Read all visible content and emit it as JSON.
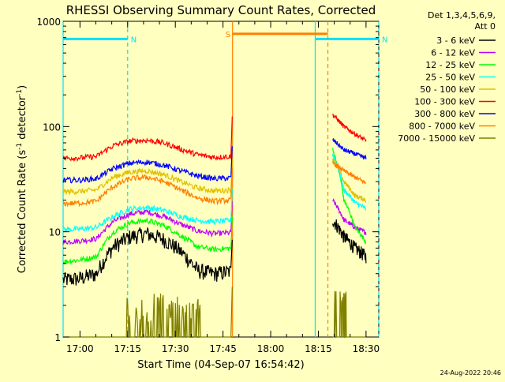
{
  "chart_data": {
    "type": "line",
    "title": "RHESSI Observing Summary Count Rates, Corrected",
    "xlabel": "Start Time (04-Sep-07 16:54:42)",
    "ylabel_main": "Corrected Count Rate (s",
    "ylabel_sup1": "-1",
    "ylabel_mid": " detector",
    "ylabel_sup2": "-1",
    "ylabel_end": ")",
    "yscale": "log",
    "ylim": [
      1,
      1000
    ],
    "xlim_min": [
      -5.3,
      94.0
    ],
    "x_ticks": [
      {
        "min": 0,
        "label": "17:00"
      },
      {
        "min": 15,
        "label": "17:15"
      },
      {
        "min": 30,
        "label": "17:30"
      },
      {
        "min": 45,
        "label": "17:45"
      },
      {
        "min": 60,
        "label": "18:00"
      },
      {
        "min": 75,
        "label": "18:15"
      },
      {
        "min": 90,
        "label": "18:30"
      }
    ],
    "y_ticks": [
      {
        "value": 1,
        "label": "1"
      },
      {
        "value": 10,
        "label": "10"
      },
      {
        "value": 100,
        "label": "100"
      },
      {
        "value": 1000,
        "label": "1000"
      }
    ],
    "legend": {
      "placement": "right",
      "header_line1": "Det 1,3,4,5,6,9,",
      "header_line2": "Att 0"
    },
    "series": [
      {
        "name": "3 - 6 keV",
        "color": "#000000",
        "profile": [
          3.5,
          3.6,
          4.0,
          7.2,
          9.0,
          9.6,
          8.5,
          6.5,
          4.3,
          4.0,
          4.2
        ],
        "post": [
          13.0,
          9.0,
          7.0,
          5.8
        ]
      },
      {
        "name": "6 - 12 keV",
        "color": "#c000ff",
        "profile": [
          8.0,
          8.2,
          8.6,
          12.5,
          14.8,
          15.5,
          14.0,
          11.8,
          10.2,
          9.6,
          9.8
        ],
        "post": [
          20.0,
          13.0,
          11.0,
          9.8
        ]
      },
      {
        "name": "12 - 25 keV",
        "color": "#00ff00",
        "profile": [
          5.2,
          5.4,
          5.8,
          10.0,
          12.2,
          12.8,
          11.5,
          9.2,
          7.2,
          6.8,
          7.0
        ],
        "post": [
          60.0,
          20.0,
          11.0,
          8.0
        ]
      },
      {
        "name": "25 - 50 keV",
        "color": "#00ffff",
        "profile": [
          10.5,
          10.6,
          11.0,
          14.0,
          16.5,
          17.0,
          16.0,
          14.0,
          12.8,
          12.5,
          12.8
        ],
        "post": [
          55.0,
          25.0,
          19.0,
          16.5
        ]
      },
      {
        "name": "50 - 100 keV",
        "color": "#e0c000",
        "profile": [
          24.0,
          24.2,
          25.0,
          33.0,
          37.0,
          38.0,
          35.0,
          30.0,
          26.0,
          24.5,
          25.0
        ],
        "post": [
          50.0,
          30.0,
          22.0,
          20.0
        ]
      },
      {
        "name": "100 - 300 keV",
        "color": "#ff0000",
        "profile": [
          50.0,
          50.5,
          52.0,
          66.0,
          73.0,
          74.0,
          70.0,
          61.0,
          54.0,
          51.0,
          52.0
        ],
        "post": [
          130.0,
          100.0,
          85.0,
          73.0
        ]
      },
      {
        "name": "300 - 800 keV",
        "color": "#0000ff",
        "profile": [
          31.0,
          31.0,
          32.0,
          40.0,
          45.0,
          46.0,
          43.0,
          38.0,
          34.0,
          32.0,
          32.5
        ],
        "post": [
          75.0,
          60.0,
          55.0,
          50.0
        ]
      },
      {
        "name": "800 - 7000 keV",
        "color": "#ff8000",
        "profile": [
          18.5,
          18.8,
          19.5,
          27.0,
          32.0,
          33.0,
          30.0,
          25.0,
          21.0,
          19.5,
          20.0
        ],
        "post": [
          45.0,
          38.0,
          33.0,
          29.0
        ]
      },
      {
        "name": "7000 - 15000 keV",
        "color": "#808000",
        "profile": [
          1.0,
          1.0,
          1.0,
          1.0,
          1.0,
          1.0,
          1.0,
          1.0,
          1.0,
          1.0,
          1.0
        ],
        "post": [
          1.0,
          1.0,
          1.0,
          1.0
        ]
      }
    ],
    "series_time_range_min": {
      "pre_start": -5.3,
      "pre_end": 47.5,
      "post_start": 79.5,
      "post_end": 90.0
    },
    "flags": [
      {
        "label": "N",
        "color": "#00e0ff",
        "start_min": -5.3,
        "end_min": 15.0,
        "level": 680,
        "start_style": "solid",
        "end_style": "dashed"
      },
      {
        "label": "N",
        "color": "#00e0ff",
        "start_min": 74.0,
        "end_min": 94.0,
        "level": 680,
        "start_style": "solid",
        "end_style": "dashed"
      },
      {
        "label": "S",
        "color": "#ff8000",
        "start_min": 48.0,
        "end_min": 78.0,
        "level": 760,
        "start_style": "solid",
        "end_style": "dashed"
      }
    ],
    "grid": false,
    "footer_date": "24-Aug-2022 20:46"
  }
}
